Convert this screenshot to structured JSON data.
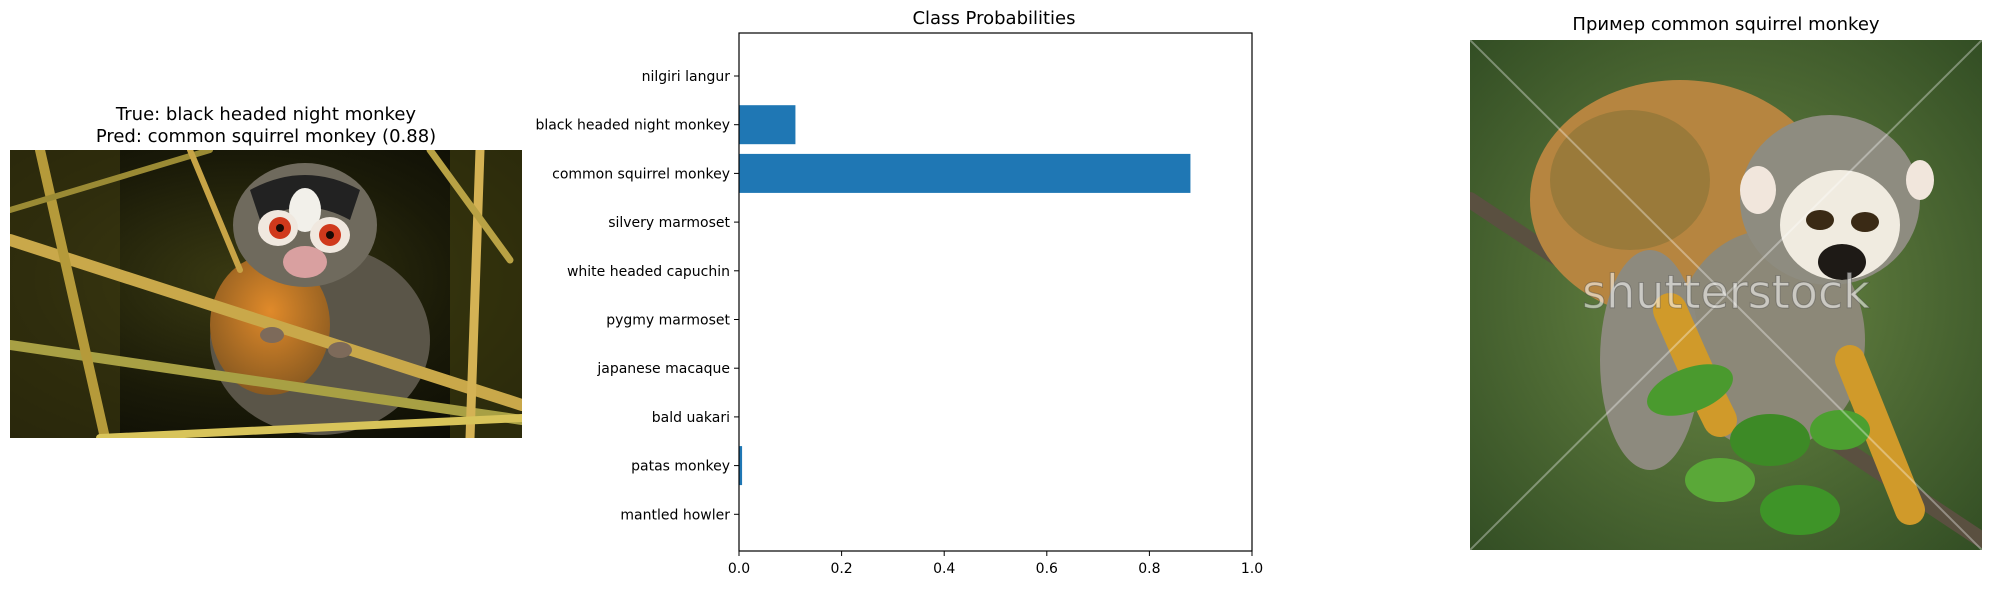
{
  "left_panel": {
    "title_line1": "True: black headed night monkey",
    "title_line2": "Pred: common squirrel monkey (0.88)",
    "image_subject": "black headed night monkey photo"
  },
  "right_panel": {
    "title": "Пример common squirrel monkey",
    "image_subject": "common squirrel monkey photo",
    "watermark": "shutterstock"
  },
  "colors": {
    "bar": "#1f77b4",
    "axis": "#000000"
  },
  "chart_data": {
    "type": "bar",
    "orientation": "horizontal",
    "title": "Class Probabilities",
    "xlabel": "",
    "ylabel": "",
    "xlim": [
      0,
      1.0
    ],
    "xticks": [
      "0.0",
      "0.2",
      "0.4",
      "0.6",
      "0.8",
      "1.0"
    ],
    "grid": false,
    "categories": [
      "nilgiri langur",
      "black headed night monkey",
      "common squirrel monkey",
      "silvery marmoset",
      "white headed capuchin",
      "pygmy marmoset",
      "japanese macaque",
      "bald uakari",
      "patas monkey",
      "mantled howler"
    ],
    "values": [
      0.0,
      0.11,
      0.88,
      0.0,
      0.0,
      0.0,
      0.0,
      0.0,
      0.006,
      0.0
    ]
  }
}
